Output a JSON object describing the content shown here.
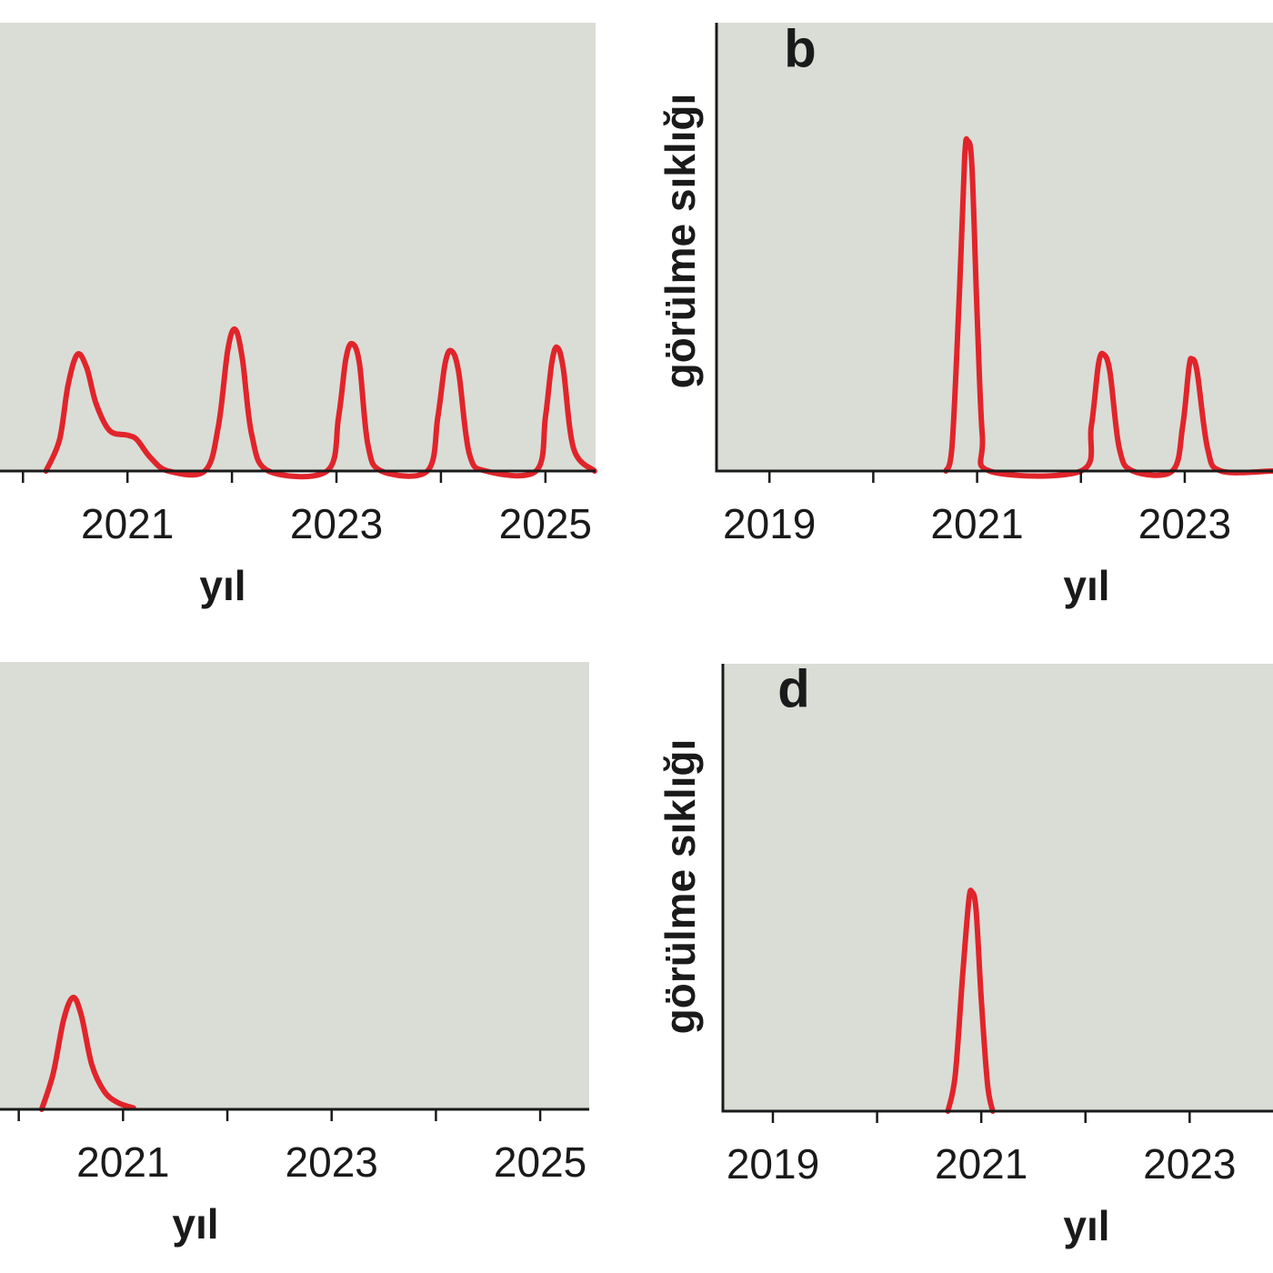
{
  "chart_data": [
    {
      "type": "line",
      "xlabel": "yıl",
      "color": "#e1242b",
      "xlim": [
        2019.78,
        2025.48
      ],
      "ylim": [
        0,
        100
      ],
      "xticks": [
        2021,
        2023,
        2025
      ],
      "minor_xticks": [
        2020,
        2022,
        2024
      ],
      "x": [
        2020.22,
        2020.35,
        2020.43,
        2020.52,
        2020.61,
        2020.7,
        2020.83,
        2021.0,
        2021.09,
        2021.22,
        2021.39,
        2021.74,
        2021.87,
        2021.96,
        2022.03,
        2022.1,
        2022.19,
        2022.35,
        2022.91,
        2023.02,
        2023.09,
        2023.15,
        2023.22,
        2023.3,
        2023.43,
        2023.87,
        2023.97,
        2024.04,
        2024.1,
        2024.17,
        2024.27,
        2024.43,
        2024.91,
        2025.0,
        2025.06,
        2025.11,
        2025.17,
        2025.27,
        2025.47
      ],
      "values": [
        0,
        7,
        19,
        26,
        23,
        15,
        9,
        8,
        7,
        3,
        0,
        0,
        10,
        27,
        31.6,
        25,
        8,
        0,
        0,
        12,
        25,
        28.4,
        24,
        6,
        0,
        0,
        12,
        24,
        26.8,
        22,
        4,
        0,
        0,
        12,
        24,
        27.6,
        23,
        5,
        0
      ]
    },
    {
      "type": "line",
      "panel_label": "b",
      "xlabel": "yıl",
      "ylabel": "görülme sıklığı",
      "color": "#e1242b",
      "xlim": [
        2018.49,
        2023.85
      ],
      "ylim": [
        0,
        100
      ],
      "xticks": [
        2019,
        2021,
        2023
      ],
      "minor_xticks": [
        2020,
        2022
      ],
      "x": [
        2020.7,
        2020.76,
        2020.83,
        2020.88,
        2020.91,
        2020.95,
        2021.0,
        2021.05,
        2021.12,
        2022.0,
        2022.1,
        2022.17,
        2022.22,
        2022.28,
        2022.37,
        2022.5,
        2022.88,
        2022.98,
        2023.04,
        2023.07,
        2023.12,
        2023.22,
        2023.35,
        2023.85
      ],
      "values": [
        0,
        6,
        40,
        70,
        73.6,
        68,
        35,
        8,
        0,
        0,
        10,
        24,
        26,
        22,
        5,
        0,
        0,
        10,
        23,
        25,
        22,
        5,
        0,
        0
      ]
    },
    {
      "type": "line",
      "xlabel": "yıl",
      "color": "#e1242b",
      "xlim": [
        2019.82,
        2025.47
      ],
      "ylim": [
        0,
        100
      ],
      "xticks": [
        2021,
        2023,
        2025
      ],
      "minor_xticks": [
        2020,
        2022,
        2024
      ],
      "x": [
        2020.22,
        2020.33,
        2020.43,
        2020.52,
        2020.6,
        2020.7,
        2020.82,
        2020.95,
        2021.1
      ],
      "values": [
        0,
        8,
        20,
        25,
        21,
        10,
        4,
        1.5,
        0.3
      ]
    },
    {
      "type": "line",
      "panel_label": "d",
      "xlabel": "yıl",
      "ylabel": "görülme sıklığı",
      "color": "#e1242b",
      "xlim": [
        2018.52,
        2023.8
      ],
      "ylim": [
        0,
        100
      ],
      "xticks": [
        2019,
        2021,
        2023
      ],
      "minor_xticks": [
        2020,
        2022
      ],
      "x": [
        2020.68,
        2020.75,
        2020.82,
        2020.88,
        2020.91,
        2020.95,
        2021.0,
        2021.06,
        2021.11
      ],
      "values": [
        0,
        8,
        30,
        47,
        49,
        45,
        25,
        6,
        0
      ]
    }
  ]
}
